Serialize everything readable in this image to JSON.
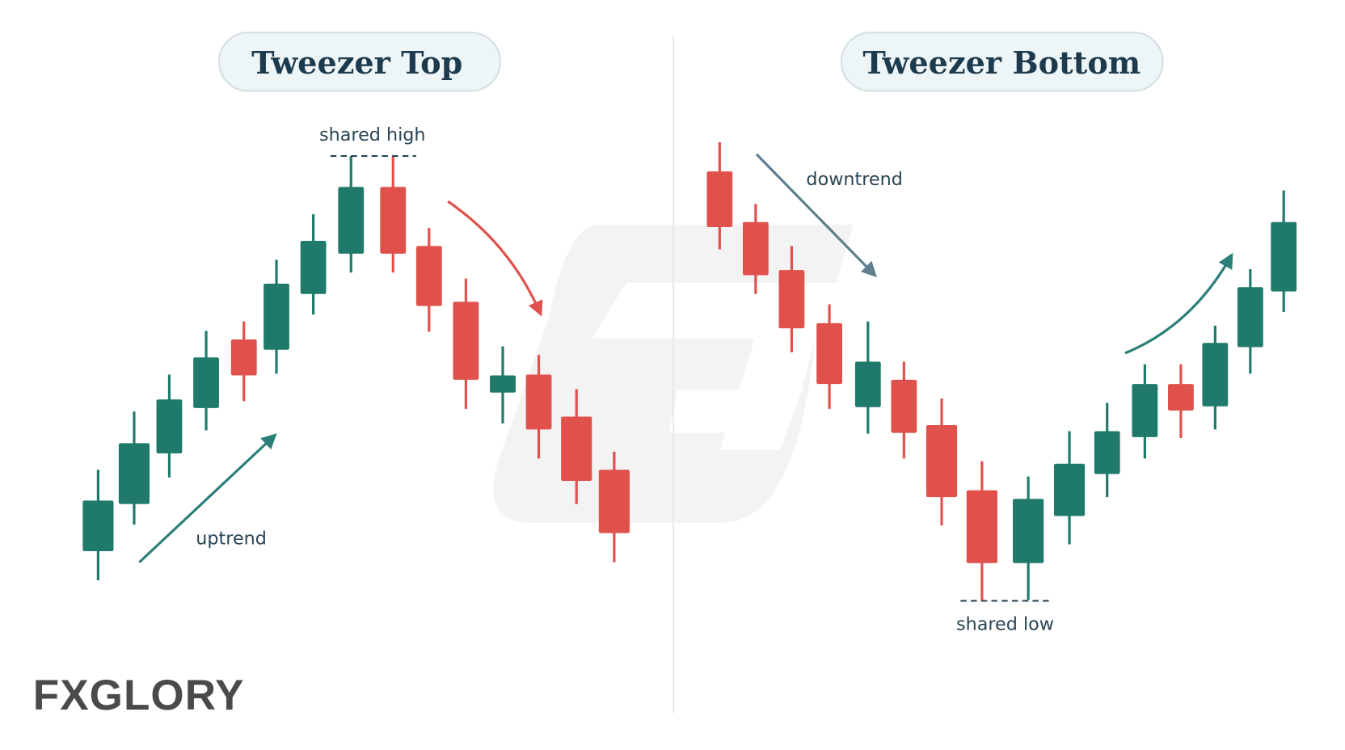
{
  "left": {
    "title": "Tweezer Top",
    "annotation": "shared high",
    "trend_label": "uptrend"
  },
  "right": {
    "title": "Tweezer Bottom",
    "annotation": "shared low",
    "trend_label": "downtrend"
  },
  "logo": "FXGLORY"
}
